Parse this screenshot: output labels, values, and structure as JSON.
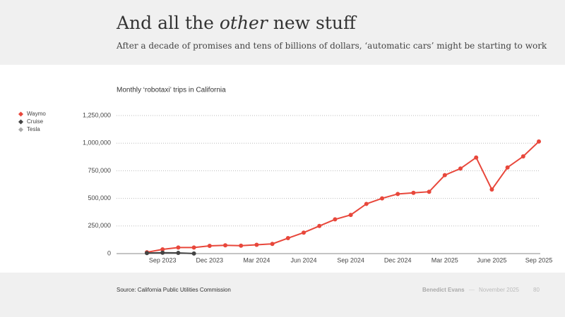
{
  "slide": {
    "title": [
      "And all the ",
      "other",
      " new stuff"
    ],
    "subtitle": "After a decade of promises and tens of billions of dollars, ‘automatic cars’ might be starting to work",
    "source": "Source: California Public Utilities Commission",
    "author": "Benedict Evans",
    "separator": "—",
    "date": "November 2025",
    "page": "80"
  },
  "chart_data": {
    "type": "line",
    "title": "Monthly ‘robotaxi’ trips in California",
    "categories": [
      null,
      "Sep 2023",
      null,
      null,
      "Dec 2023",
      null,
      null,
      "Mar 2024",
      null,
      null,
      "Jun 2024",
      null,
      null,
      "Sep 2024",
      null,
      null,
      "Dec 2024",
      null,
      null,
      "Mar 2025",
      null,
      null,
      "June 2025",
      null,
      null,
      "Sep 2025"
    ],
    "series": [
      {
        "name": "Waymo",
        "color": "#e8473b",
        "values": [
          12000,
          38000,
          55000,
          55000,
          70000,
          75000,
          72000,
          80000,
          88000,
          140000,
          190000,
          250000,
          310000,
          350000,
          450000,
          500000,
          540000,
          550000,
          560000,
          710000,
          770000,
          870000,
          580000,
          780000,
          880000,
          1015000
        ]
      },
      {
        "name": "Cruise",
        "color": "#444444",
        "values": [
          5000,
          8000,
          6000,
          1000,
          null,
          null,
          null,
          null,
          null,
          null,
          null,
          null,
          null,
          null,
          null,
          null,
          null,
          null,
          null,
          null,
          null,
          null,
          null,
          null,
          null,
          null
        ]
      },
      {
        "name": "Tesla",
        "color": "#aaaaaa",
        "values": [
          null,
          null,
          null,
          null,
          null,
          null,
          null,
          null,
          null,
          null,
          null,
          null,
          null,
          null,
          null,
          null,
          null,
          null,
          null,
          null,
          null,
          null,
          null,
          null,
          null,
          null
        ]
      }
    ],
    "ylim": [
      0,
      1250000
    ],
    "yticks": [
      0,
      {
        "value": 250000,
        "label": "250,000"
      },
      {
        "value": 500000,
        "label": "500,000"
      },
      {
        "value": 750000,
        "label": "750,000"
      },
      {
        "value": 1000000,
        "label": "1,000,000"
      },
      {
        "value": 1250000,
        "label": "1,250,000"
      }
    ],
    "grid": true,
    "legend": "left"
  }
}
